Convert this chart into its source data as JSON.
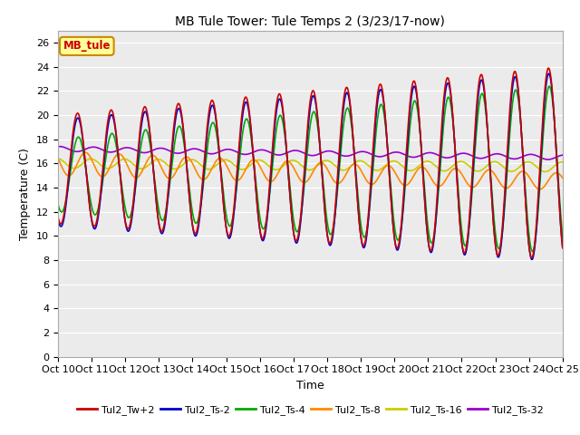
{
  "title": "MB Tule Tower: Tule Temps 2 (3/23/17-now)",
  "xlabel": "Time",
  "ylabel": "Temperature (C)",
  "ylim": [
    0,
    27
  ],
  "yticks": [
    0,
    2,
    4,
    6,
    8,
    10,
    12,
    14,
    16,
    18,
    20,
    22,
    24,
    26
  ],
  "xtick_labels": [
    "Oct 10",
    "Oct 11",
    "Oct 12",
    "Oct 13",
    "Oct 14",
    "Oct 15",
    "Oct 16",
    "Oct 17",
    "Oct 18",
    "Oct 19",
    "Oct 20",
    "Oct 21",
    "Oct 22",
    "Oct 23",
    "Oct 24",
    "Oct 25"
  ],
  "series": {
    "Tul2_Tw+2": {
      "color": "#cc0000",
      "lw": 1.2
    },
    "Tul2_Ts-2": {
      "color": "#0000cc",
      "lw": 1.2
    },
    "Tul2_Ts-4": {
      "color": "#00aa00",
      "lw": 1.2
    },
    "Tul2_Ts-8": {
      "color": "#ff8800",
      "lw": 1.2
    },
    "Tul2_Ts-16": {
      "color": "#cccc00",
      "lw": 1.2
    },
    "Tul2_Ts-32": {
      "color": "#9900cc",
      "lw": 1.2
    }
  },
  "legend_text": "MB_tule",
  "legend_bg": "#ffff99",
  "legend_border": "#cc8800",
  "plot_bg": "#ebebeb"
}
